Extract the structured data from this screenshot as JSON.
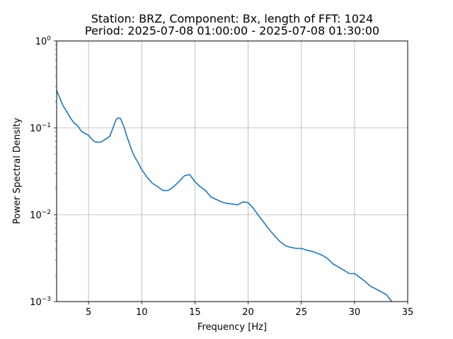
{
  "chart_data": {
    "type": "line",
    "title_line1": "Station: BRZ, Component: Bx, length of FFT: 1024",
    "title_line2": "Period: 2025-07-08 01:00:00 - 2025-07-08 01:30:00",
    "xlabel": "Frequency [Hz]",
    "ylabel": "Power Spectral Density",
    "xlim": [
      2,
      35
    ],
    "ylim": [
      0.001,
      1
    ],
    "yscale": "log",
    "grid": true,
    "line_color": "#1f77b4",
    "x_ticks": [
      5,
      10,
      15,
      20,
      25,
      30,
      35
    ],
    "x_tick_labels": [
      "5",
      "10",
      "15",
      "20",
      "25",
      "30",
      "35"
    ],
    "y_ticks": [
      {
        "value": 0.001,
        "base": "10",
        "exp": "−3"
      },
      {
        "value": 0.01,
        "base": "10",
        "exp": "−2"
      },
      {
        "value": 0.1,
        "base": "10",
        "exp": "−1"
      },
      {
        "value": 1,
        "base": "10",
        "exp": "0"
      }
    ],
    "series": [
      {
        "x": [
          2.0,
          2.3,
          2.6,
          3.0,
          3.3,
          3.6,
          4.0,
          4.3,
          4.6,
          5.0,
          5.3,
          5.6,
          6.0,
          6.3,
          6.6,
          7.0,
          7.3,
          7.6,
          7.8,
          8.0,
          8.3,
          8.6,
          9.0,
          9.3,
          9.6,
          10.0,
          10.5,
          11.0,
          11.5,
          12.0,
          12.5,
          13.0,
          13.5,
          14.0,
          14.5,
          15.0,
          15.5,
          16.0,
          16.5,
          17.0,
          17.5,
          18.0,
          18.5,
          19.0,
          19.5,
          20.0,
          20.5,
          21.0,
          21.5,
          22.0,
          22.5,
          23.0,
          23.5,
          24.0,
          24.5,
          25.0,
          25.5,
          26.0,
          26.5,
          27.0,
          27.5,
          28.0,
          28.5,
          29.0,
          29.5,
          30.0,
          30.5,
          31.0,
          31.5,
          32.0,
          32.5,
          33.0,
          33.5
        ],
        "y": [
          0.27,
          0.22,
          0.18,
          0.15,
          0.13,
          0.115,
          0.105,
          0.092,
          0.087,
          0.082,
          0.074,
          0.069,
          0.068,
          0.07,
          0.074,
          0.08,
          0.1,
          0.125,
          0.13,
          0.128,
          0.105,
          0.08,
          0.058,
          0.047,
          0.041,
          0.033,
          0.027,
          0.023,
          0.021,
          0.019,
          0.019,
          0.021,
          0.024,
          0.028,
          0.029,
          0.024,
          0.021,
          0.019,
          0.016,
          0.015,
          0.014,
          0.0135,
          0.0133,
          0.013,
          0.014,
          0.0138,
          0.0118,
          0.0097,
          0.0081,
          0.0067,
          0.0057,
          0.0049,
          0.0044,
          0.0042,
          0.0041,
          0.0041,
          0.0039,
          0.0038,
          0.0036,
          0.0034,
          0.0031,
          0.0027,
          0.0025,
          0.0023,
          0.0021,
          0.0021,
          0.0019,
          0.0017,
          0.0015,
          0.0014,
          0.0013,
          0.0012,
          0.001
        ]
      }
    ]
  }
}
